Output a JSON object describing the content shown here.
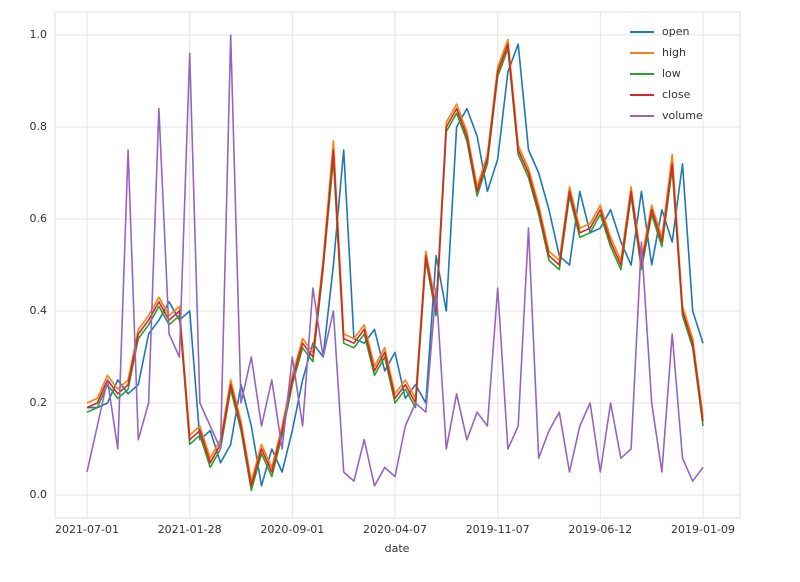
{
  "chart_data": {
    "type": "line",
    "xlabel": "date",
    "categories": [
      "2021-07-01",
      null,
      null,
      null,
      null,
      null,
      null,
      null,
      null,
      null,
      "2021-01-28",
      null,
      null,
      null,
      null,
      null,
      null,
      null,
      null,
      null,
      "2020-09-01",
      null,
      null,
      null,
      null,
      null,
      null,
      null,
      null,
      null,
      "2020-04-07",
      null,
      null,
      null,
      null,
      null,
      null,
      null,
      null,
      null,
      "2019-11-07",
      null,
      null,
      null,
      null,
      null,
      null,
      null,
      null,
      null,
      "2019-06-12",
      null,
      null,
      null,
      null,
      null,
      null,
      null,
      null,
      null,
      "2019-01-09"
    ],
    "series": [
      {
        "name": "open",
        "color": "#1f77b4",
        "values": [
          0.19,
          0.19,
          0.2,
          0.25,
          0.22,
          0.24,
          0.35,
          0.38,
          0.42,
          0.38,
          0.4,
          0.12,
          0.14,
          0.07,
          0.11,
          0.24,
          0.15,
          0.02,
          0.1,
          0.05,
          0.14,
          0.25,
          0.33,
          0.3,
          0.5,
          0.75,
          0.34,
          0.33,
          0.36,
          0.27,
          0.31,
          0.21,
          0.24,
          0.2,
          0.52,
          0.4,
          0.8,
          0.84,
          0.78,
          0.66,
          0.73,
          0.92,
          0.98,
          0.75,
          0.7,
          0.62,
          0.52,
          0.5,
          0.66,
          0.57,
          0.58,
          0.62,
          0.55,
          0.5,
          0.66,
          0.5,
          0.62,
          0.55,
          0.72,
          0.4,
          0.33
        ]
      },
      {
        "name": "high",
        "color": "#ff7f0e",
        "values": [
          0.2,
          0.21,
          0.26,
          0.23,
          0.25,
          0.36,
          0.39,
          0.43,
          0.39,
          0.41,
          0.13,
          0.15,
          0.08,
          0.12,
          0.25,
          0.16,
          0.03,
          0.11,
          0.06,
          0.15,
          0.26,
          0.34,
          0.31,
          0.51,
          0.77,
          0.35,
          0.34,
          0.37,
          0.28,
          0.32,
          0.22,
          0.25,
          0.21,
          0.53,
          0.41,
          0.81,
          0.85,
          0.79,
          0.67,
          0.74,
          0.93,
          0.99,
          0.76,
          0.71,
          0.63,
          0.53,
          0.51,
          0.67,
          0.58,
          0.59,
          0.63,
          0.56,
          0.51,
          0.67,
          0.51,
          0.63,
          0.56,
          0.74,
          0.41,
          0.34,
          0.17
        ]
      },
      {
        "name": "low",
        "color": "#2ca02c",
        "values": [
          0.18,
          0.19,
          0.24,
          0.21,
          0.23,
          0.34,
          0.37,
          0.41,
          0.37,
          0.39,
          0.11,
          0.13,
          0.06,
          0.1,
          0.23,
          0.14,
          0.01,
          0.09,
          0.04,
          0.13,
          0.24,
          0.32,
          0.29,
          0.49,
          0.73,
          0.33,
          0.32,
          0.35,
          0.26,
          0.3,
          0.2,
          0.23,
          0.19,
          0.51,
          0.39,
          0.79,
          0.83,
          0.77,
          0.65,
          0.72,
          0.91,
          0.97,
          0.74,
          0.69,
          0.61,
          0.51,
          0.49,
          0.65,
          0.56,
          0.57,
          0.61,
          0.54,
          0.49,
          0.65,
          0.49,
          0.61,
          0.54,
          0.71,
          0.39,
          0.32,
          0.15
        ]
      },
      {
        "name": "close",
        "color": "#d62728",
        "values": [
          0.19,
          0.2,
          0.25,
          0.22,
          0.24,
          0.35,
          0.38,
          0.42,
          0.38,
          0.4,
          0.12,
          0.14,
          0.07,
          0.11,
          0.24,
          0.15,
          0.02,
          0.1,
          0.05,
          0.14,
          0.25,
          0.33,
          0.3,
          0.5,
          0.75,
          0.34,
          0.33,
          0.36,
          0.27,
          0.31,
          0.21,
          0.24,
          0.2,
          0.52,
          0.4,
          0.8,
          0.84,
          0.78,
          0.66,
          0.73,
          0.92,
          0.98,
          0.75,
          0.7,
          0.62,
          0.52,
          0.5,
          0.66,
          0.57,
          0.58,
          0.62,
          0.55,
          0.5,
          0.66,
          0.5,
          0.62,
          0.55,
          0.72,
          0.4,
          0.33,
          0.16
        ]
      },
      {
        "name": "volume",
        "color": "#9467bd",
        "values": [
          0.05,
          0.15,
          0.25,
          0.1,
          0.75,
          0.12,
          0.2,
          0.84,
          0.35,
          0.3,
          0.96,
          0.2,
          0.15,
          0.1,
          1.0,
          0.2,
          0.3,
          0.15,
          0.25,
          0.1,
          0.3,
          0.15,
          0.45,
          0.3,
          0.4,
          0.05,
          0.03,
          0.12,
          0.02,
          0.06,
          0.04,
          0.15,
          0.2,
          0.18,
          0.45,
          0.1,
          0.22,
          0.12,
          0.18,
          0.15,
          0.45,
          0.1,
          0.15,
          0.58,
          0.08,
          0.14,
          0.18,
          0.05,
          0.15,
          0.2,
          0.05,
          0.2,
          0.08,
          0.1,
          0.55,
          0.2,
          0.05,
          0.35,
          0.08,
          0.03,
          0.06
        ]
      }
    ],
    "ylim": [
      -0.05,
      1.05
    ],
    "yticks": [
      {
        "value": 0,
        "label": "0.0"
      },
      0.2,
      0.4,
      0.6,
      0.8,
      {
        "value": 1,
        "label": "1.0"
      }
    ],
    "grid": true,
    "legend": "upper right"
  }
}
